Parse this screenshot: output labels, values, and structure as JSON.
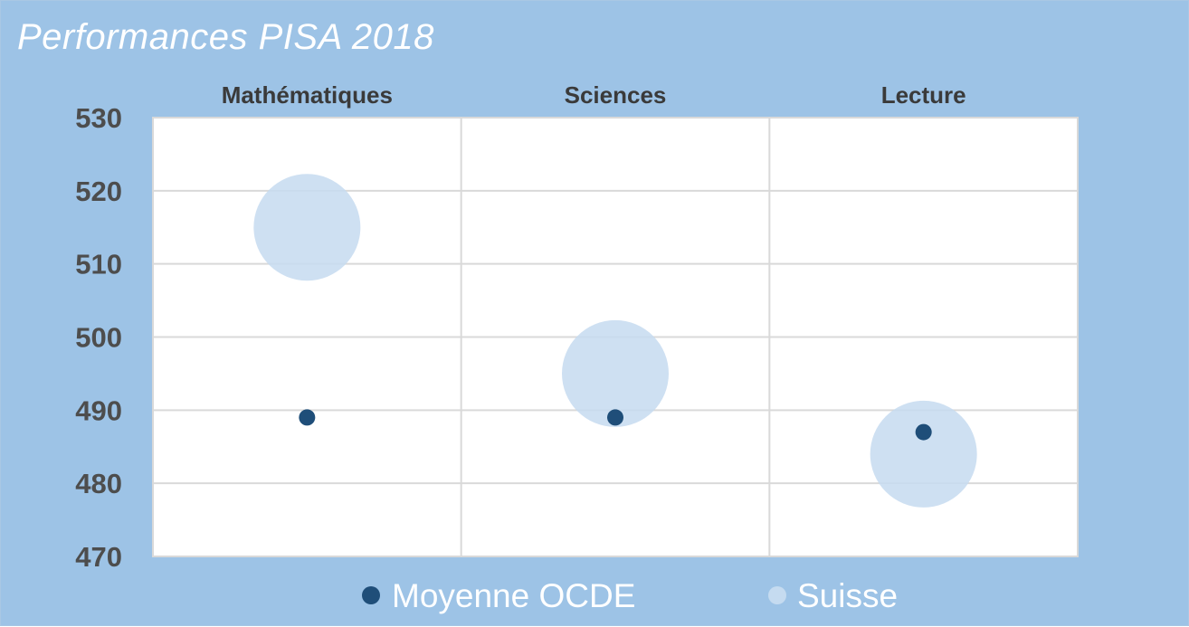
{
  "chart_data": {
    "type": "bubble",
    "title": "Performances PISA 2018",
    "categories": [
      "Mathématiques",
      "Sciences",
      "Lecture"
    ],
    "y_ticks": [
      "530",
      "520",
      "510",
      "500",
      "490",
      "480",
      "470"
    ],
    "ylim": [
      470,
      530
    ],
    "grid": true,
    "legend_position": "bottom",
    "series": [
      {
        "name": "Moyenne OCDE",
        "color": "#1f4e79",
        "values": [
          489,
          489,
          487
        ],
        "size": "small"
      },
      {
        "name": "Suisse",
        "color": "#c5dbf0",
        "values": [
          515,
          495,
          484
        ],
        "size": "large"
      }
    ]
  },
  "colors": {
    "background": "#9dc3e6",
    "plot_area": "#ffffff",
    "gridline": "#d9d9d9"
  }
}
